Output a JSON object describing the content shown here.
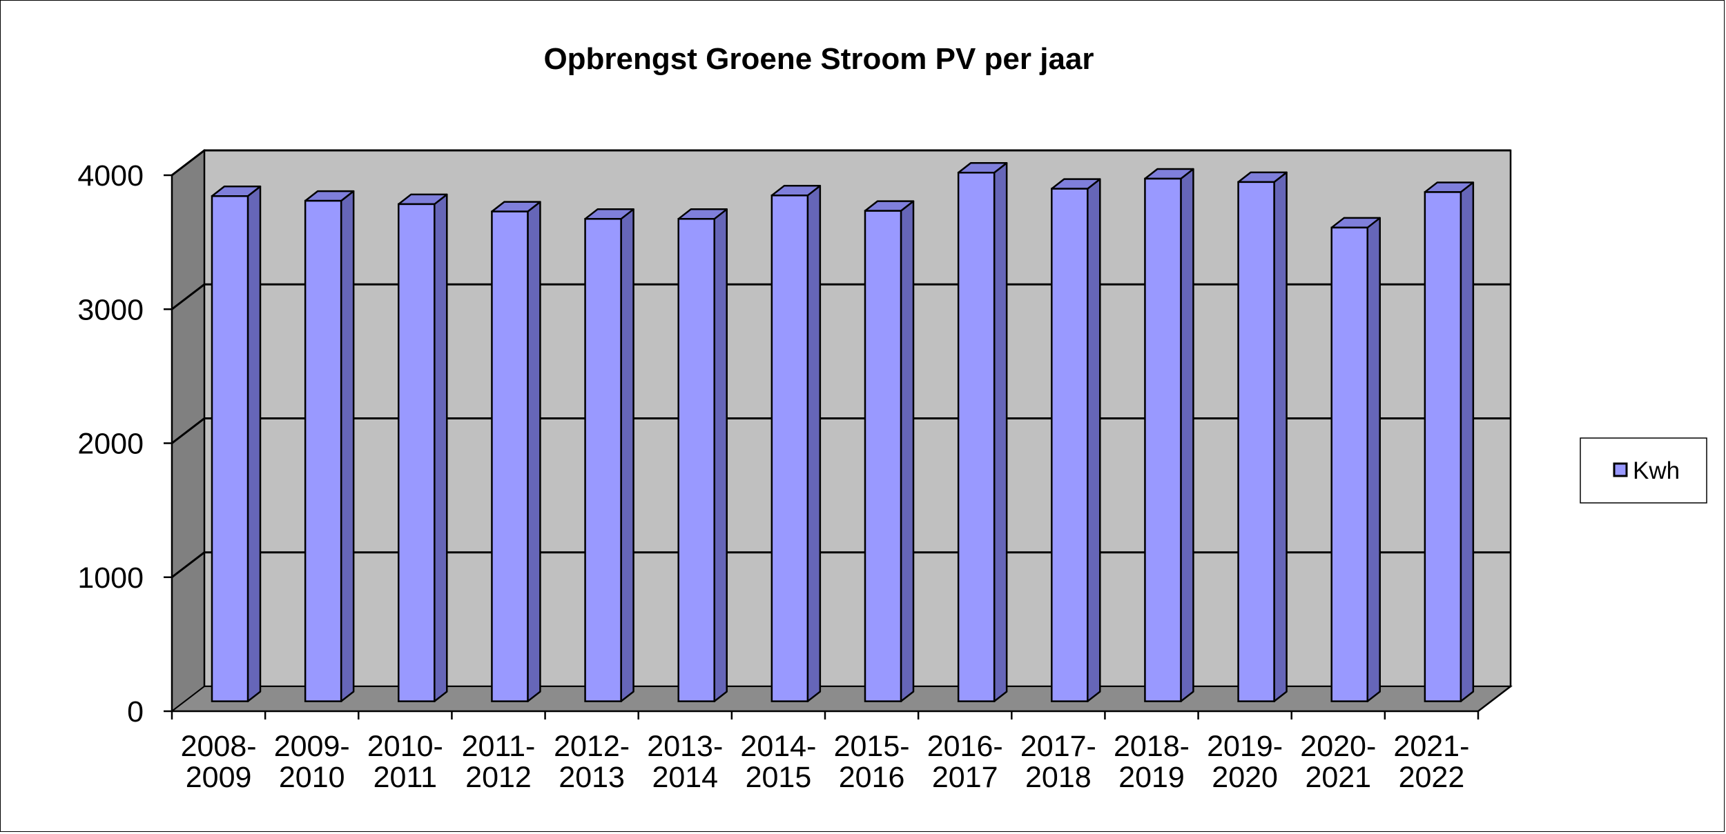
{
  "chart_data": {
    "type": "bar",
    "title": "Opbrengst Groene Stroom PV per jaar",
    "xlabel": "",
    "ylabel": "",
    "categories": [
      [
        "2008-",
        "2009"
      ],
      [
        "2009-",
        "2010"
      ],
      [
        "2010-",
        "2011"
      ],
      [
        "2011-",
        "2012"
      ],
      [
        "2012-",
        "2013"
      ],
      [
        "2013-",
        "2014"
      ],
      [
        "2014-",
        "2015"
      ],
      [
        "2015-",
        "2016"
      ],
      [
        "2016-",
        "2017"
      ],
      [
        "2017-",
        "2018"
      ],
      [
        "2018-",
        "2019"
      ],
      [
        "2019-",
        "2020"
      ],
      [
        "2020-",
        "2021"
      ],
      [
        "2021-",
        "2022"
      ]
    ],
    "series": [
      {
        "name": "Kwh",
        "values": [
          3770,
          3735,
          3710,
          3655,
          3600,
          3600,
          3775,
          3660,
          3945,
          3825,
          3900,
          3875,
          3535,
          3800
        ]
      }
    ],
    "ylim": [
      0,
      4000
    ],
    "yticks": [
      "0",
      "1000",
      "2000",
      "3000",
      "4000"
    ],
    "grid": true,
    "legend": "right",
    "colors": {
      "bar_front": "#9999ff",
      "bar_side": "#6666b8",
      "bar_top": "#7f7fdb",
      "wall_back": "#c0c0c0",
      "wall_side": "#808080",
      "floor": "#8c8c8c"
    }
  }
}
